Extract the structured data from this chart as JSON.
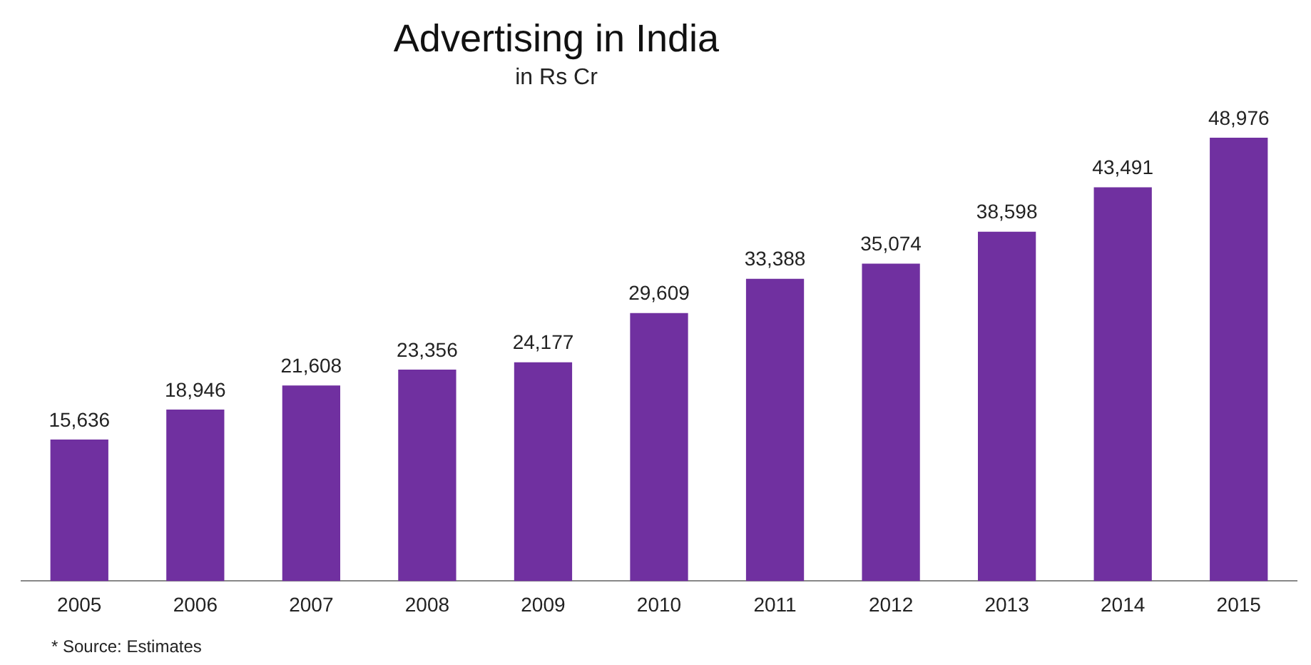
{
  "chart_data": {
    "type": "bar",
    "title": "Advertising in India",
    "subtitle": "in Rs Cr",
    "categories": [
      "2005",
      "2006",
      "2007",
      "2008",
      "2009",
      "2010",
      "2011",
      "2012",
      "2013",
      "2014",
      "2015"
    ],
    "values": [
      15636,
      18946,
      21608,
      23356,
      24177,
      29609,
      33388,
      35074,
      38598,
      43491,
      48976
    ],
    "value_labels": [
      "15,636",
      "18,946",
      "21,608",
      "23,356",
      "24,177",
      "29,609",
      "33,388",
      "35,074",
      "38,598",
      "43,491",
      "48,976"
    ],
    "color": "#7030a0",
    "grid": false,
    "legend": false,
    "annotations": [
      "* Source: Estimates"
    ]
  }
}
